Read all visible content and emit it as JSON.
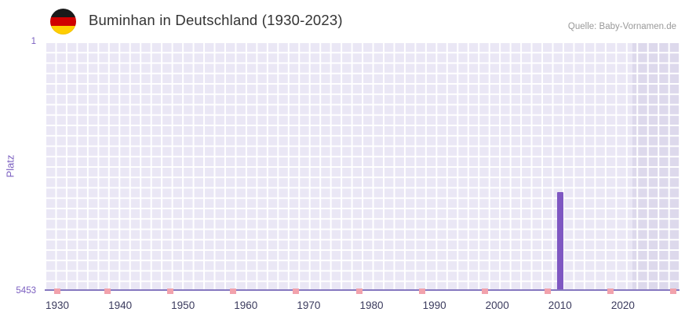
{
  "header": {
    "title": "Buminhan in Deutschland (1930-2023)",
    "source": "Quelle: Baby-Vornamen.de",
    "flag_icon": "german-flag-icon"
  },
  "chart_data": {
    "type": "bar",
    "title": "Buminhan in Deutschland (1930-2023)",
    "xlabel": "",
    "ylabel": "Platz",
    "y_axis_inverted": true,
    "xlim": [
      1928,
      2029
    ],
    "ylim": [
      1,
      5453
    ],
    "x_ticks": [
      "1930",
      "1940",
      "1950",
      "1960",
      "1970",
      "1980",
      "1990",
      "2000",
      "2010",
      "2020"
    ],
    "y_ticks": [
      "1",
      "5453"
    ],
    "grid": true,
    "legend": false,
    "series": [
      {
        "name": "Platz",
        "points": [
          {
            "year": 2010,
            "rank": 3300
          }
        ]
      }
    ],
    "no_data_marker_years": [
      1930,
      1938,
      1948,
      1958,
      1968,
      1978,
      1988,
      1998,
      2008,
      2018,
      2028
    ],
    "highlight_band": {
      "from": 2021.5,
      "to": 2029
    },
    "colors": {
      "bar": "#7e57c2",
      "plot_background": "#eae7f5",
      "gridline": "#ffffff",
      "highlight_band": "#ddd9ec",
      "marker": "#f2a2ac",
      "axis_line": "#8678c0",
      "y_tick_label": "#7b5fc0",
      "x_tick_label": "#3b3b5e"
    }
  }
}
